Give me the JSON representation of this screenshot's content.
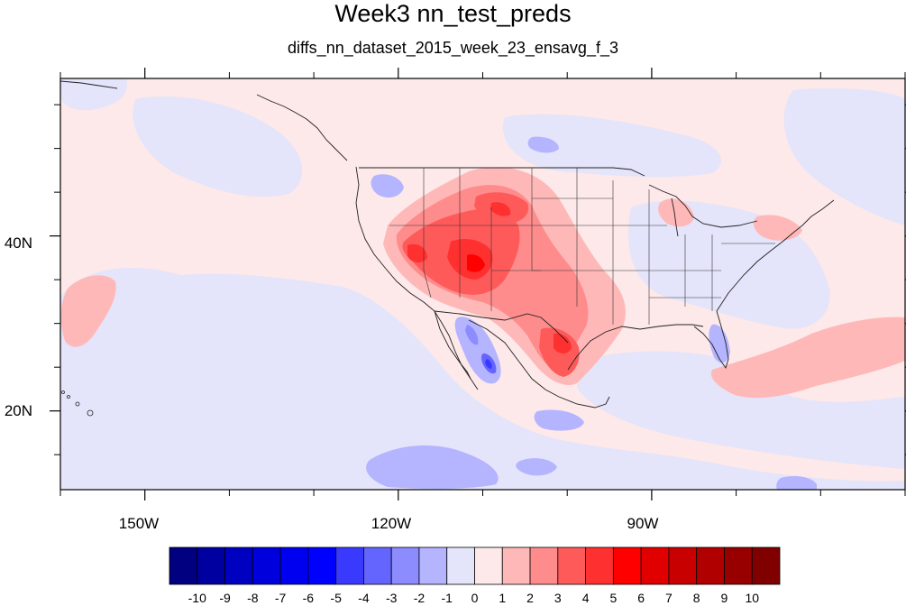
{
  "title": "Week3 nn_test_preds",
  "subtitle": "diffs_nn_dataset_2015_week_23_ensavg_f_3",
  "map": {
    "projection": "cylindrical equidistant",
    "lon_range": [
      -160,
      -60
    ],
    "lat_range": [
      11,
      58
    ],
    "x_ticks": [
      {
        "lon": -150,
        "label": "150W"
      },
      {
        "lon": -120,
        "label": "120W"
      },
      {
        "lon": -90,
        "label": "90W"
      }
    ],
    "y_ticks": [
      {
        "lat": 40,
        "label": "40N"
      },
      {
        "lat": 20,
        "label": "20N"
      }
    ],
    "background_color": "#fde9e9",
    "boundaries": "coastlines, state and country outlines"
  },
  "colorbar": {
    "levels": [
      "-10",
      "-9",
      "-8",
      "-7",
      "-6",
      "-5",
      "-4",
      "-3",
      "-2",
      "-1",
      "0",
      "1",
      "2",
      "3",
      "4",
      "5",
      "6",
      "7",
      "8",
      "9",
      "10"
    ],
    "colors": [
      "#000080",
      "#0000a0",
      "#0000c0",
      "#0000dc",
      "#0000f0",
      "#0000ff",
      "#3a3aff",
      "#6464ff",
      "#8c8cff",
      "#b4b4ff",
      "#e4e4fa",
      "#fde9e9",
      "#ffb8b8",
      "#ff8c8c",
      "#ff5a5a",
      "#ff3030",
      "#ff0000",
      "#e00000",
      "#c80000",
      "#b00000",
      "#980000",
      "#800000"
    ]
  }
}
